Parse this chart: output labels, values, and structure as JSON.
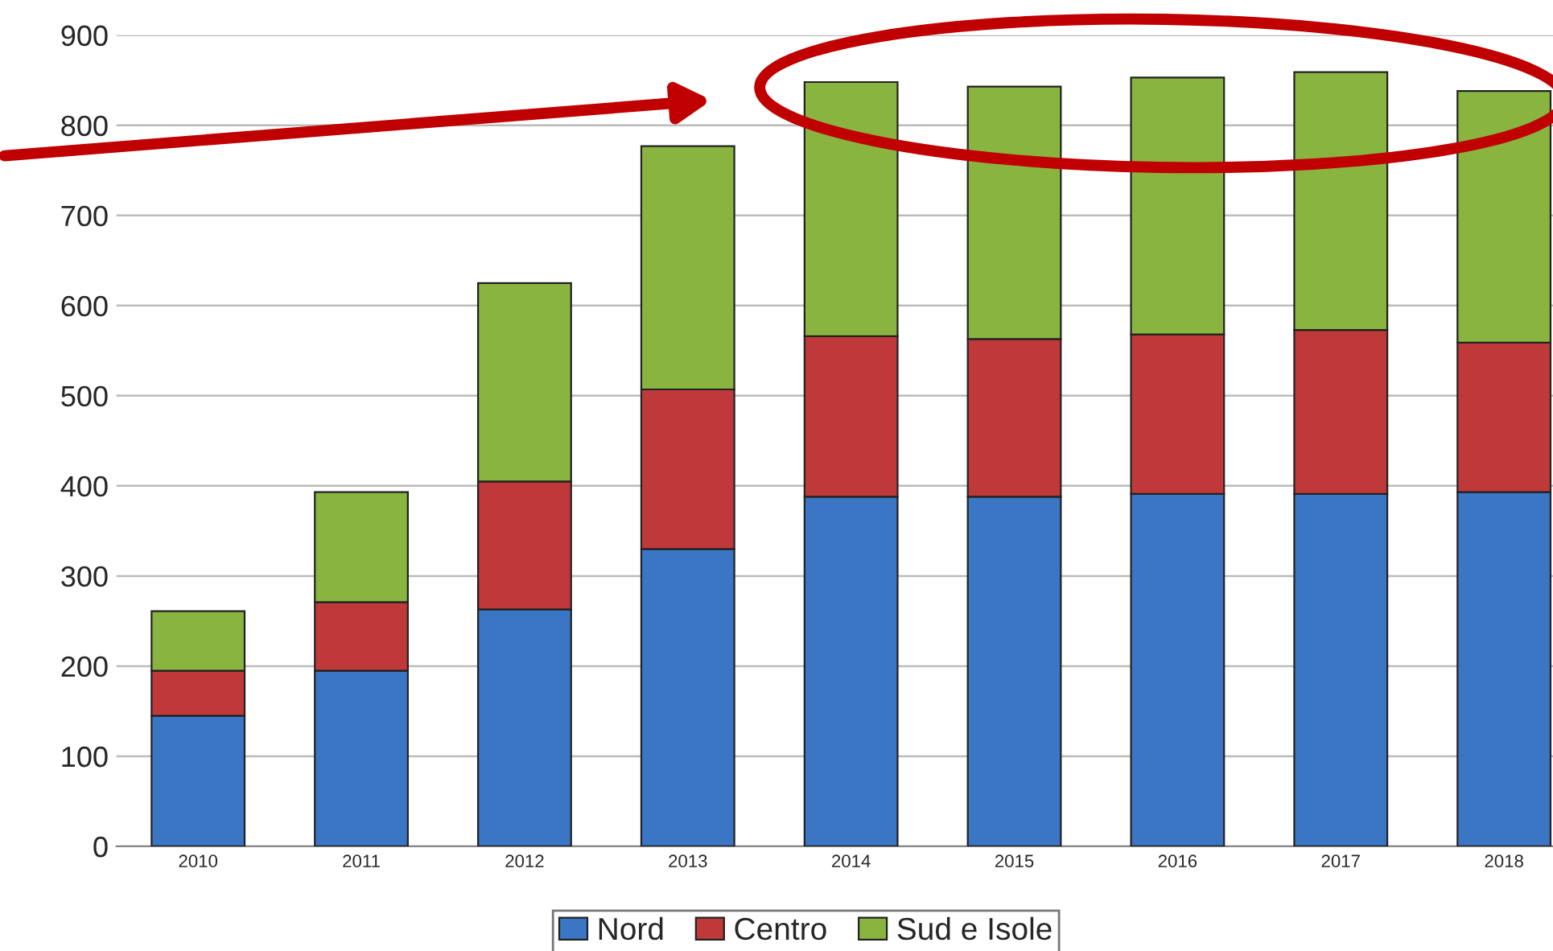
{
  "chart_data": {
    "type": "bar",
    "stacked": true,
    "categories": [
      "2010",
      "2011",
      "2012",
      "2013",
      "2014",
      "2015",
      "2016",
      "2017",
      "2018"
    ],
    "series": [
      {
        "name": "Nord",
        "color": "#3a76c4",
        "values": [
          145,
          195,
          263,
          330,
          388,
          388,
          391,
          391,
          393
        ]
      },
      {
        "name": "Centro",
        "color": "#c0393a",
        "values": [
          50,
          76,
          142,
          177,
          178,
          175,
          177,
          182,
          166
        ]
      },
      {
        "name": "Sud e Isole",
        "color": "#8ab440",
        "values": [
          66,
          122,
          220,
          270,
          282,
          280,
          285,
          286,
          279
        ]
      }
    ],
    "ylim": [
      0,
      900
    ],
    "yticks": [
      0,
      100,
      200,
      300,
      400,
      500,
      600,
      700,
      800,
      900
    ],
    "grid": "y",
    "legend": "bottom"
  }
}
